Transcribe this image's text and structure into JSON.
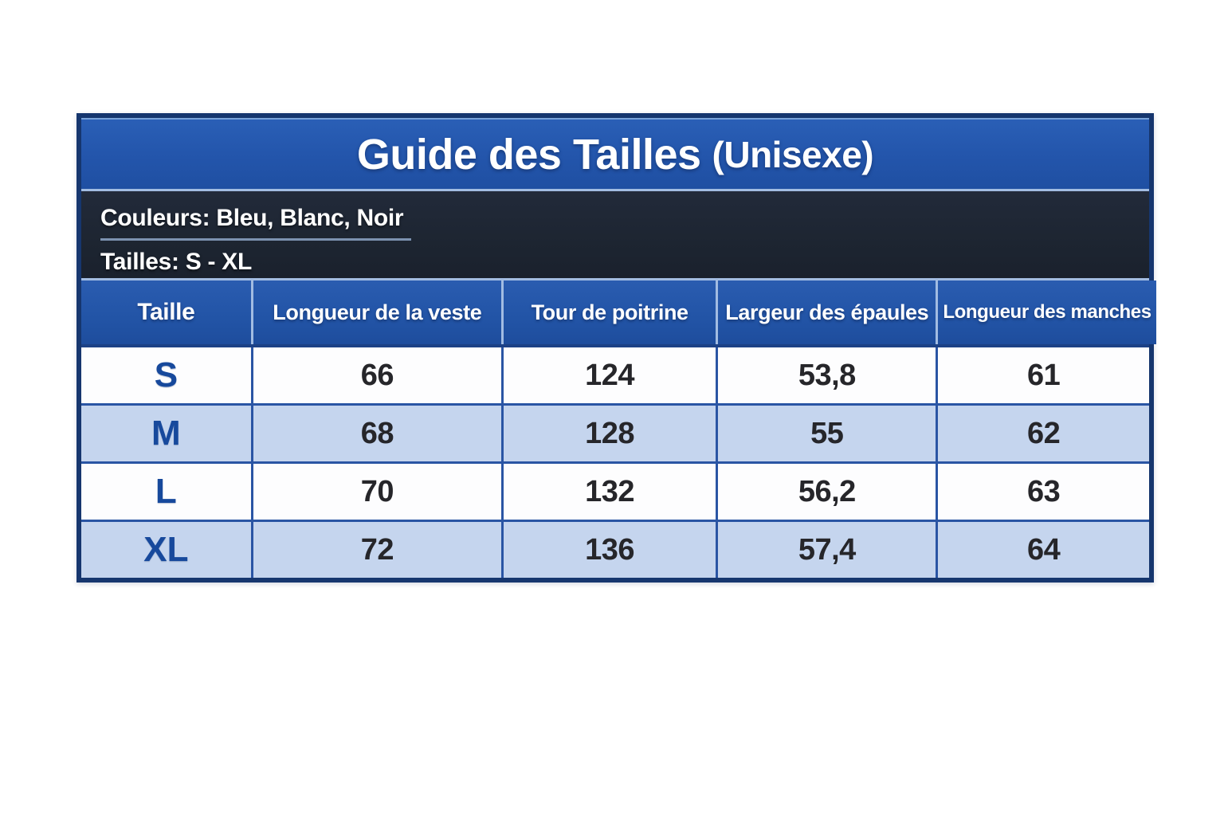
{
  "colors": {
    "outer_border": "#16366e",
    "title_band_bg": "#2355ab",
    "info_band_bg": "#1d2531",
    "header_bg": "#2254a6",
    "row_bg": "#fdfdfe",
    "row_alt_bg": "#c5d5ee",
    "grid_line": "#2a55a4",
    "light_line": "#a2bce2",
    "size_text": "#17499c",
    "value_text": "#26262a",
    "text_on_dark": "#ffffff"
  },
  "size_guide": {
    "title": "Guide des Tailles",
    "title_suffix": "(Unisexe)",
    "info": {
      "colors_line": "Couleurs: Bleu, Blanc, Noir",
      "sizes_line": "Tailles: S - XL"
    },
    "columns": [
      "Taille",
      "Longueur de la veste",
      "Tour de poitrine",
      "Largeur des épaules",
      "Longueur des manches"
    ],
    "rows": [
      {
        "size": "S",
        "jacket_length": "66",
        "chest": "124",
        "shoulder": "53,8",
        "sleeve": "61"
      },
      {
        "size": "M",
        "jacket_length": "68",
        "chest": "128",
        "shoulder": "55",
        "sleeve": "62"
      },
      {
        "size": "L",
        "jacket_length": "70",
        "chest": "132",
        "shoulder": "56,2",
        "sleeve": "63"
      },
      {
        "size": "XL",
        "jacket_length": "72",
        "chest": "136",
        "shoulder": "57,4",
        "sleeve": "64"
      }
    ]
  },
  "chart_data": {
    "type": "table",
    "title": "Guide des Tailles (Unisexe)",
    "notes": [
      "Couleurs: Bleu, Blanc, Noir",
      "Tailles: S - XL"
    ],
    "columns": [
      "Taille",
      "Longueur de la veste",
      "Tour de poitrine",
      "Largeur des épaules",
      "Longueur des manches"
    ],
    "rows": [
      [
        "S",
        66,
        124,
        53.8,
        61
      ],
      [
        "M",
        68,
        128,
        55,
        62
      ],
      [
        "L",
        70,
        132,
        56.2,
        63
      ],
      [
        "XL",
        72,
        136,
        57.4,
        64
      ]
    ],
    "layout_hints": {
      "zebra_striping": true,
      "header_position": "top",
      "decimal_separator": ","
    }
  }
}
